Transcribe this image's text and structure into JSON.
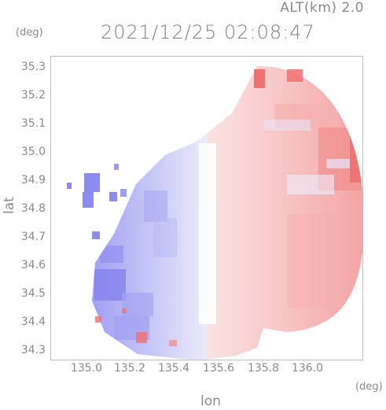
{
  "header": {
    "altitude": "ALT(km) 2.0",
    "timestamp": "2021/12/25 02:08:47"
  },
  "axes": {
    "y_unit": "(deg)",
    "x_unit": "(deg)",
    "y_title": "lat",
    "x_title": "lon",
    "y_ticks": [
      "35.3",
      "35.2",
      "35.1",
      "35.0",
      "34.9",
      "34.8",
      "34.7",
      "34.6",
      "34.5",
      "34.4",
      "34.3"
    ],
    "x_ticks": [
      "135.0",
      "135.2",
      "135.4",
      "135.6",
      "135.8",
      "136.0"
    ]
  },
  "colors": {
    "approach": "#7b7bf0",
    "recede": "#f07878",
    "neutral": "#ffffff",
    "frame": "#bdbdbd",
    "text": "#8a8a8a"
  }
}
